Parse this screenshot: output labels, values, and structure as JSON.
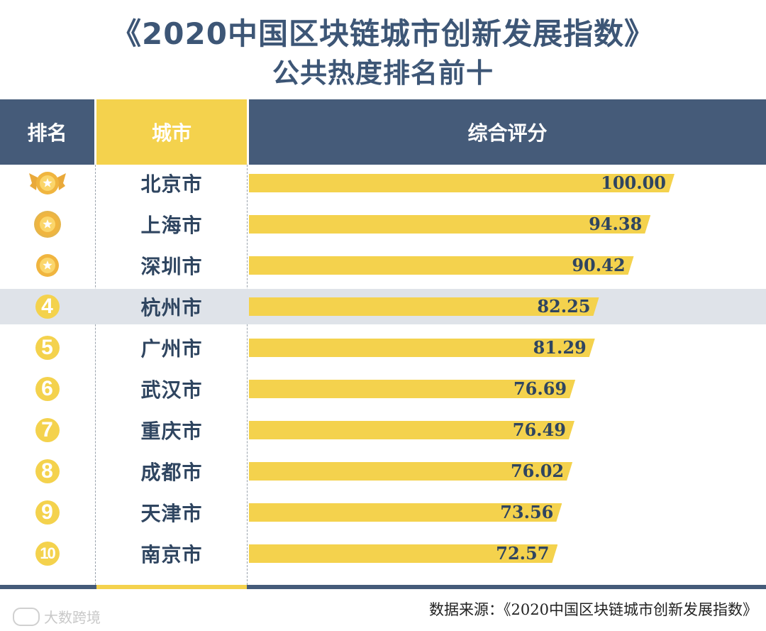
{
  "title": {
    "line1": "《2020中国区块链城市创新发展指数》",
    "line2": "公共热度排名前十"
  },
  "table": {
    "headers": {
      "rank": "排名",
      "city": "城市",
      "score": "综合评分"
    }
  },
  "colors": {
    "navy": "#455b79",
    "yellow": "#f4d24d",
    "text": "#2f4560",
    "highlight": "#dfe3e9"
  },
  "chart_data": {
    "type": "bar",
    "orientation": "horizontal",
    "ranks": [
      "1",
      "2",
      "3",
      "4",
      "5",
      "6",
      "7",
      "8",
      "9",
      "10"
    ],
    "rank_icons": [
      "gold-medal-wings",
      "gold-medal-laurel",
      "gold-medal",
      "number-circle",
      "number-circle",
      "number-circle",
      "number-circle",
      "number-circle",
      "number-circle",
      "number-circle"
    ],
    "categories": [
      "北京市",
      "上海市",
      "深圳市",
      "杭州市",
      "广州市",
      "武汉市",
      "重庆市",
      "成都市",
      "天津市",
      "南京市"
    ],
    "values": [
      100.0,
      94.38,
      90.42,
      82.25,
      81.29,
      76.69,
      76.49,
      76.02,
      73.56,
      72.57
    ],
    "value_labels": [
      "100.00",
      "94.38",
      "90.42",
      "82.25",
      "81.29",
      "76.69",
      "76.49",
      "76.02",
      "73.56",
      "72.57"
    ],
    "highlighted_category": "杭州市"
  },
  "source": "数据来源：《2020中国区块链城市创新发展指数》",
  "watermark": "大数跨境"
}
